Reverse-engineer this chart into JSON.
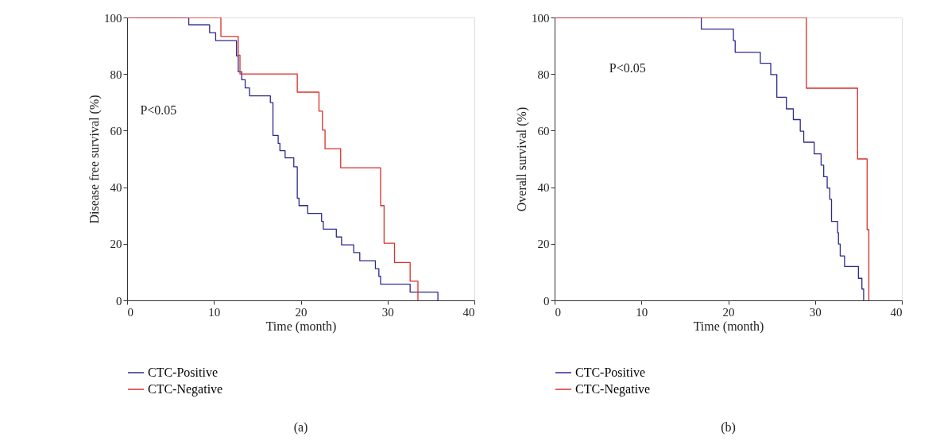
{
  "chart_data": [
    {
      "type": "step",
      "xlabel": "Time (month)",
      "ylabel": "Disease free survival (%)",
      "xlim": [
        0,
        40
      ],
      "ylim": [
        0,
        100
      ],
      "xticks": [
        0,
        10,
        20,
        30,
        40
      ],
      "yticks": [
        0,
        20,
        40,
        60,
        80,
        100
      ],
      "grid": false,
      "legend": "bottom",
      "annotations": [
        "P<0.05",
        "(a)"
      ],
      "series": [
        {
          "name": "CTC-Positive",
          "color": "#2e2a8c",
          "x": [
            0,
            7.1,
            9.5,
            10.2,
            12.6,
            12.8,
            13.2,
            13.6,
            14.1,
            16.5,
            16.8,
            17.4,
            17.6,
            18.2,
            19.2,
            19.6,
            19.8,
            20.8,
            22.4,
            22.6,
            24.1,
            24.7,
            26.1,
            26.8,
            28.6,
            29.0,
            29.2,
            32.6,
            35.8
          ],
          "values": [
            100,
            97.4,
            94.6,
            91.8,
            86.4,
            80.8,
            78.0,
            75.1,
            72.3,
            69.9,
            58.3,
            55.5,
            52.9,
            50.4,
            47.2,
            36.1,
            33.5,
            30.7,
            27.9,
            25.2,
            22.4,
            19.6,
            16.9,
            14.0,
            11.2,
            8.5,
            5.7,
            2.9,
            0
          ]
        },
        {
          "name": "CTC-Negative",
          "color": "#d9302a",
          "x": [
            0,
            10.8,
            12.8,
            13.0,
            19.6,
            22.1,
            22.5,
            22.8,
            24.6,
            29.2,
            29.6,
            30.8,
            32.6,
            33.5
          ],
          "values": [
            100,
            93.3,
            86.7,
            80,
            73.6,
            66.9,
            60.2,
            53.6,
            46.9,
            33.5,
            20.2,
            13.4,
            6.8,
            0
          ]
        }
      ]
    },
    {
      "type": "step",
      "xlabel": "Time (month)",
      "ylabel": "Overall survival (%)",
      "xlim": [
        0,
        40
      ],
      "ylim": [
        0,
        100
      ],
      "xticks": [
        0,
        10,
        20,
        30,
        40
      ],
      "yticks": [
        0,
        20,
        40,
        60,
        80,
        100
      ],
      "grid": false,
      "legend": "bottom",
      "annotations": [
        "P<0.05",
        "(b)"
      ],
      "series": [
        {
          "name": "CTC-Positive",
          "color": "#2e2a8c",
          "x": [
            0,
            16.9,
            20.6,
            20.8,
            23.7,
            24.9,
            25.6,
            26.7,
            27.5,
            28.3,
            28.7,
            29.9,
            30.7,
            31.0,
            31.4,
            31.7,
            31.9,
            32.6,
            32.7,
            32.9,
            33.4,
            35.0,
            35.4,
            35.6
          ],
          "values": [
            100,
            95.9,
            91.8,
            87.7,
            83.8,
            79.8,
            71.8,
            67.7,
            63.9,
            59.8,
            55.9,
            51.8,
            47.8,
            43.7,
            39.7,
            35.7,
            27.9,
            23.9,
            19.9,
            15.7,
            12.0,
            7.8,
            4.0,
            0
          ]
        },
        {
          "name": "CTC-Negative",
          "color": "#d9302a",
          "x": [
            0,
            29.0,
            34.9,
            36.0,
            36.2
          ],
          "values": [
            100,
            75,
            50,
            25,
            0
          ]
        }
      ]
    }
  ]
}
